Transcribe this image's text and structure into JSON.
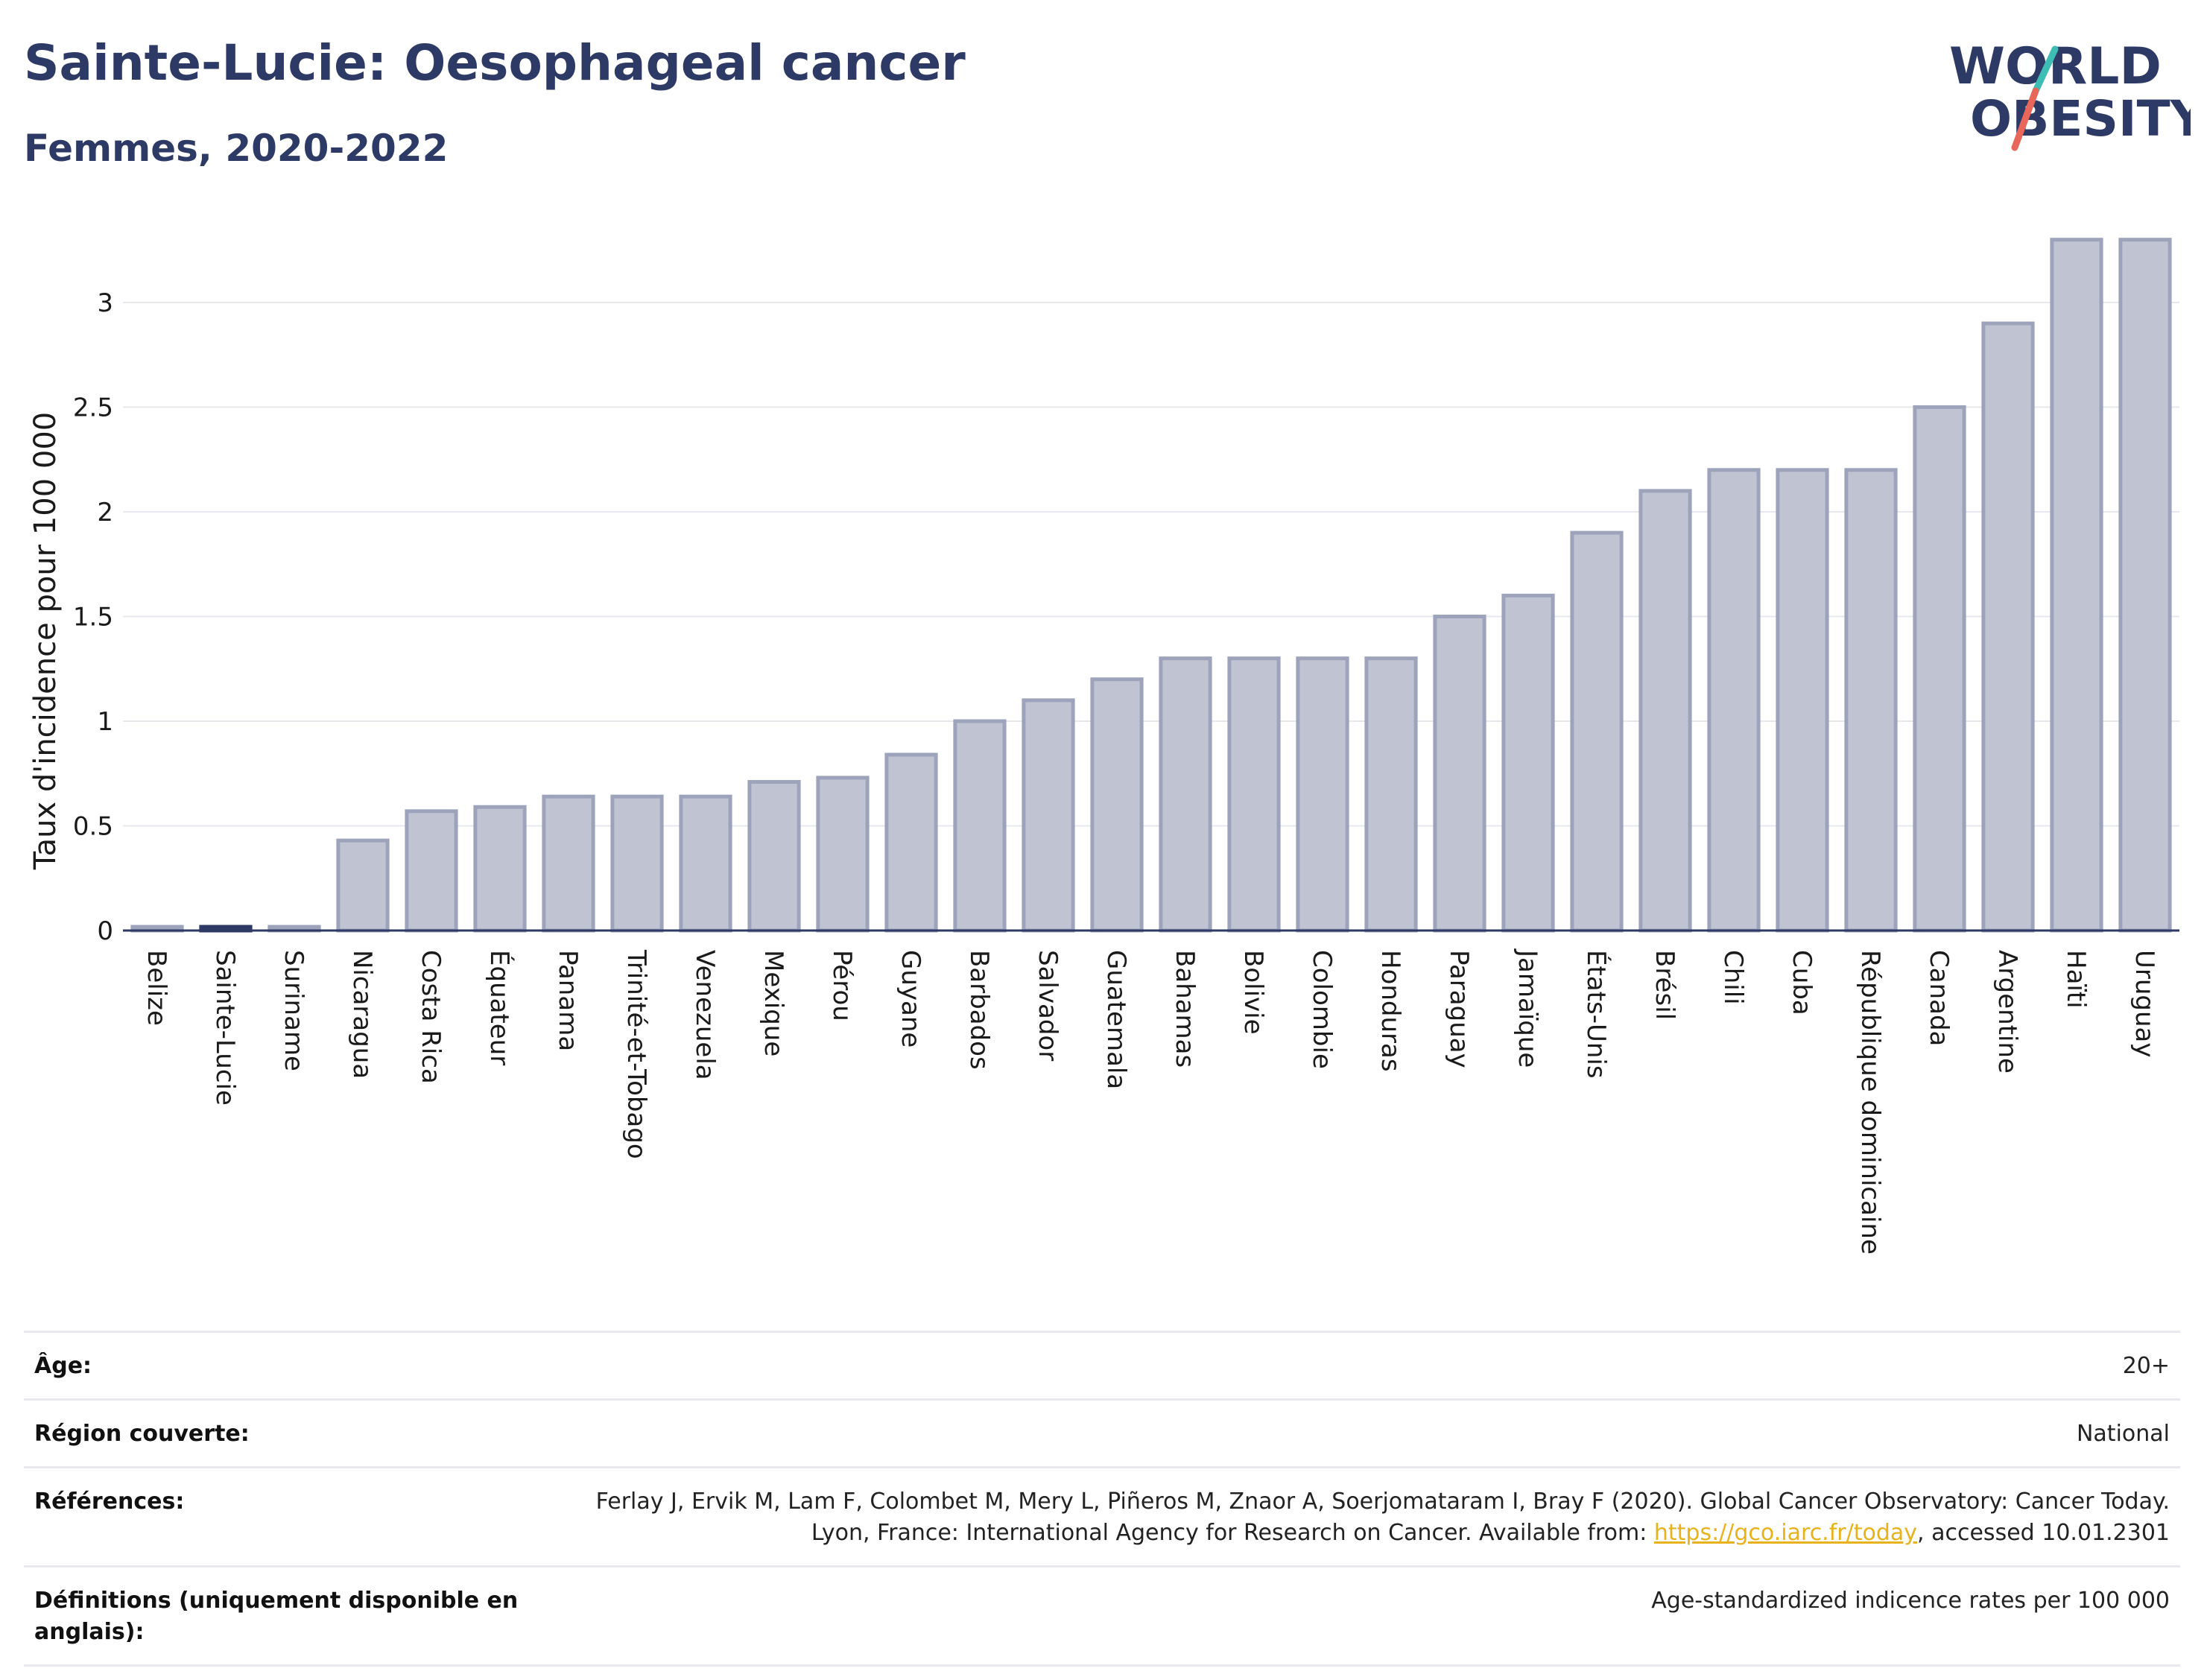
{
  "header": {
    "title": "Sainte-Lucie: Oesophageal cancer",
    "subtitle": "Femmes, 2020-2022"
  },
  "logo": {
    "line1": "WORLD",
    "line2": "OBESITY",
    "colors": {
      "text": "#2e3a66",
      "slash_top": "#3dbdb4",
      "slash_bottom": "#e8675a"
    }
  },
  "colors": {
    "bar_fill": "#c0c3d1",
    "bar_stroke": "#9ea3bc",
    "highlight": "#2e3a66",
    "gridline": "#e6e8ee",
    "axis": "#2e3a66"
  },
  "chart_data": {
    "type": "bar",
    "title": "Sainte-Lucie: Oesophageal cancer",
    "subtitle": "Femmes, 2020-2022",
    "xlabel": "",
    "ylabel": "Taux d'incidence pour 100 000",
    "ylim": [
      0,
      3.3
    ],
    "yticks": [
      0,
      0.5,
      1,
      1.5,
      2,
      2.5,
      3
    ],
    "ytick_labels": [
      "0",
      "0.5",
      "1",
      "1.5",
      "2",
      "2.5",
      "3"
    ],
    "grid": true,
    "highlight": "Sainte-Lucie",
    "categories": [
      "Belize",
      "Sainte-Lucie",
      "Suriname",
      "Nicaragua",
      "Costa Rica",
      "Équateur",
      "Panama",
      "Trinité-et-Tobago",
      "Venezuela",
      "Mexique",
      "Pérou",
      "Guyane",
      "Barbados",
      "Salvador",
      "Guatemala",
      "Bahamas",
      "Bolivie",
      "Colombie",
      "Honduras",
      "Paraguay",
      "Jamaïque",
      "États-Unis",
      "Brésil",
      "Chili",
      "Cuba",
      "République dominicaine",
      "Canada",
      "Argentine",
      "Haïti",
      "Uruguay"
    ],
    "values": [
      0.0,
      0.0,
      0.0,
      0.43,
      0.57,
      0.59,
      0.64,
      0.64,
      0.64,
      0.71,
      0.73,
      0.84,
      1.0,
      1.1,
      1.2,
      1.3,
      1.3,
      1.3,
      1.3,
      1.5,
      1.6,
      1.9,
      2.1,
      2.2,
      2.2,
      2.2,
      2.5,
      2.9,
      3.3,
      3.3
    ]
  },
  "meta": {
    "age_label": "Âge:",
    "age_value": "20+",
    "region_label": "Région couverte:",
    "region_value": "National",
    "references_label": "Références:",
    "references_text": "Ferlay J, Ervik M, Lam F, Colombet M, Mery L, Piñeros M, Znaor A, Soerjomataram I, Bray F (2020). Global Cancer Observatory: Cancer Today. Lyon, France: International Agency for Research on Cancer. Available from:",
    "references_link": "https://gco.iarc.fr/today",
    "references_suffix": ", accessed 10.01.2301",
    "definitions_label": "Définitions (uniquement disponible en anglais):",
    "definitions_value": "Age-standardized indicence rates per 100 000"
  }
}
